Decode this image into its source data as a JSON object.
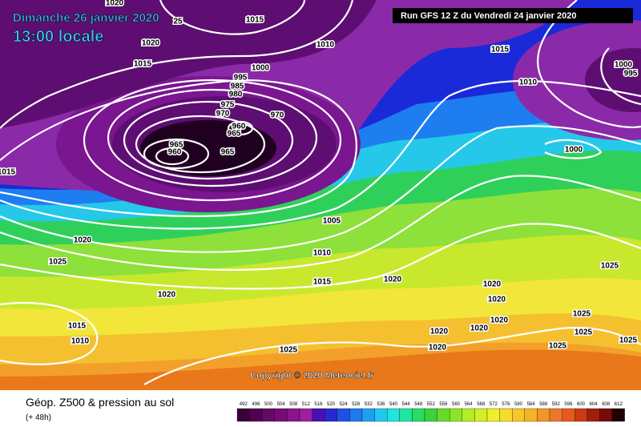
{
  "header": {
    "date": "Dimanche 26 janvier 2020",
    "time": "13:00 locale",
    "run": "Run GFS 12 Z du Vendredi 24 janvier 2020"
  },
  "copyright": "Copyright © 2020 Meteociel.fr",
  "footer": {
    "title": "Géop. Z500 & pression au sol",
    "subtitle": "(+ 48h)"
  },
  "isobar_labels": [
    "1020",
    "25",
    "1015",
    "1020",
    "1015",
    "1010",
    "1015",
    "1000",
    "995",
    "985",
    "980",
    "975",
    "970",
    "970",
    "960",
    "965",
    "965",
    "960",
    "965",
    "1010",
    "1000",
    "995",
    "1000",
    "1015",
    "1005",
    "1020",
    "1025",
    "1010",
    "1015",
    "1020",
    "1020",
    "1020",
    "1020",
    "1025",
    "1025",
    "1015",
    "1010",
    "1025",
    "1020",
    "1020",
    "1020",
    "1020",
    "1025",
    "1025",
    "1025"
  ],
  "legend": {
    "ticks": [
      492,
      496,
      500,
      504,
      508,
      512,
      516,
      520,
      524,
      528,
      532,
      536,
      540,
      544,
      548,
      552,
      556,
      560,
      564,
      568,
      572,
      576,
      580,
      584,
      588,
      592,
      596,
      600,
      604,
      608,
      612
    ]
  }
}
